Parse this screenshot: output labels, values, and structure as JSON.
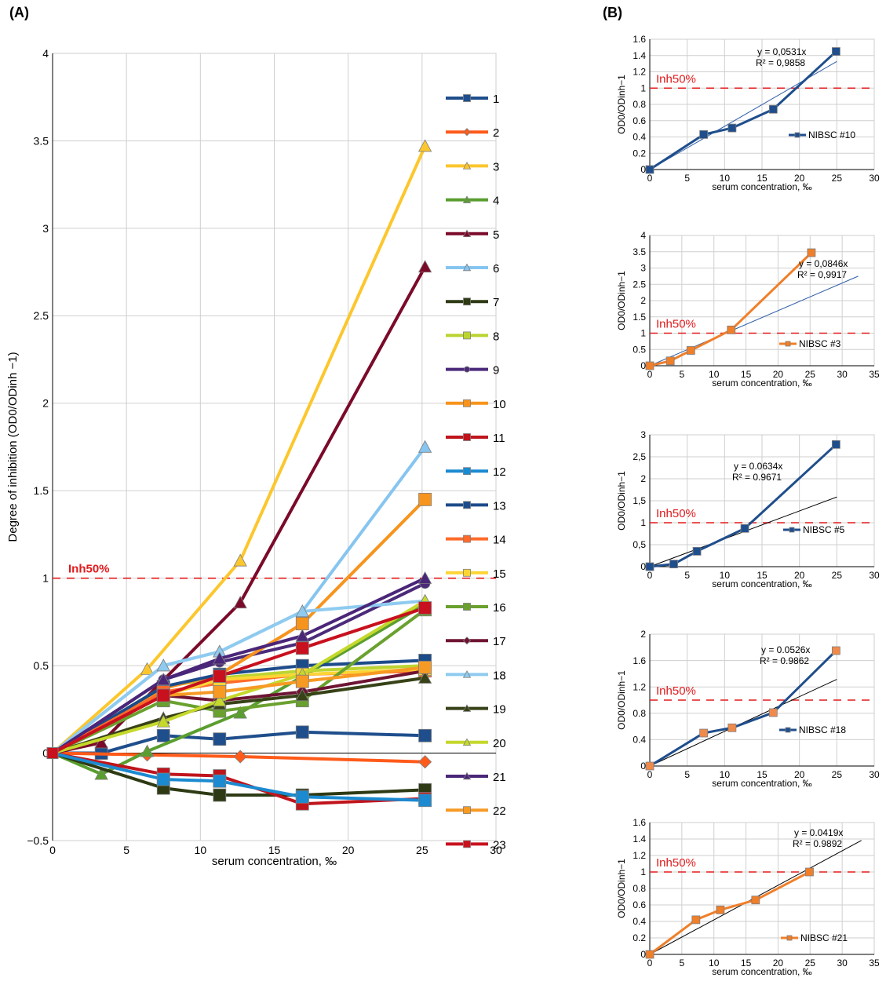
{
  "panels": {
    "A": {
      "label": "(A)"
    },
    "B": {
      "label": "(B)"
    }
  },
  "chart_data": [
    {
      "type": "line",
      "panel": "A",
      "xlabel": "serum concentration, ‰",
      "ylabel": "Degree of inhibition (OD0/ODinh −1)",
      "xlim": [
        0,
        30
      ],
      "ylim": [
        -0.5,
        4
      ],
      "xticks": [
        "0",
        "5",
        "10",
        "15",
        "20",
        "25",
        "30"
      ],
      "yticks": [
        "−0.5",
        "0",
        "0.5",
        "1",
        "1.5",
        "2",
        "2.5",
        "3",
        "3.5",
        "4"
      ],
      "grid": true,
      "legend_position": "right",
      "threshold": {
        "label": "Inh50%",
        "y": 1,
        "color": "#e31a1c"
      },
      "series": [
        {
          "name": "1",
          "color": "#1f4e8c",
          "marker": "square",
          "x": [
            0,
            3.3,
            7.5,
            11.3,
            16.9,
            25.2
          ],
          "y": [
            0,
            0,
            0.1,
            0.08,
            0.12,
            0.1
          ]
        },
        {
          "name": "2",
          "color": "#ff5a1a",
          "marker": "diamond",
          "x": [
            0,
            6.4,
            12.7,
            25.2
          ],
          "y": [
            0,
            -0.01,
            -0.02,
            -0.05
          ]
        },
        {
          "name": "3",
          "color": "#fcc72d",
          "marker": "triangle",
          "x": [
            0,
            6.4,
            12.7,
            25.2
          ],
          "y": [
            0,
            0.48,
            1.1,
            3.47
          ]
        },
        {
          "name": "4",
          "color": "#5a9e2f",
          "marker": "triangle",
          "x": [
            0,
            3.3,
            6.4,
            12.7,
            25.2
          ],
          "y": [
            0,
            -0.12,
            0.01,
            0.23,
            0.85
          ]
        },
        {
          "name": "5",
          "color": "#7b0a2a",
          "marker": "triangle",
          "x": [
            0,
            3.3,
            12.7,
            25.2
          ],
          "y": [
            0,
            0.06,
            0.86,
            2.78
          ]
        },
        {
          "name": "6",
          "color": "#86c5f0",
          "marker": "triangle",
          "x": [
            0,
            7.5,
            11.3,
            16.9,
            25.2
          ],
          "y": [
            0,
            0.5,
            0.58,
            0.81,
            1.75
          ]
        },
        {
          "name": "7",
          "color": "#2d3a14",
          "marker": "square",
          "x": [
            0,
            7.5,
            11.3,
            16.9,
            25.2
          ],
          "y": [
            0,
            -0.2,
            -0.24,
            -0.24,
            -0.21
          ]
        },
        {
          "name": "8",
          "color": "#bcd431",
          "marker": "square",
          "x": [
            0,
            7.5,
            11.3,
            16.9,
            25.2
          ],
          "y": [
            0,
            0.38,
            0.43,
            0.47,
            0.5
          ]
        },
        {
          "name": "9",
          "color": "#4b2a7a",
          "marker": "circle",
          "x": [
            0,
            7.5,
            11.3,
            16.9,
            25.2
          ],
          "y": [
            0,
            0.42,
            0.52,
            0.63,
            0.97
          ]
        },
        {
          "name": "10",
          "color": "#f7941d",
          "marker": "square",
          "x": [
            0,
            7.5,
            11.3,
            16.9,
            25.2
          ],
          "y": [
            0,
            0.37,
            0.45,
            0.74,
            1.45
          ]
        },
        {
          "name": "11",
          "color": "#c0141c",
          "marker": "cross",
          "x": [
            0,
            7.5,
            11.3,
            16.9,
            25.2
          ],
          "y": [
            0,
            -0.12,
            -0.13,
            -0.29,
            -0.26
          ]
        },
        {
          "name": "12",
          "color": "#1b8ad0",
          "marker": "square",
          "x": [
            0,
            7.5,
            11.3,
            16.9,
            25.2
          ],
          "y": [
            0,
            -0.15,
            -0.16,
            -0.25,
            -0.27
          ]
        },
        {
          "name": "13",
          "color": "#1c4b8a",
          "marker": "square",
          "x": [
            0,
            7.5,
            11.3,
            16.9,
            25.2
          ],
          "y": [
            0,
            0.38,
            0.45,
            0.5,
            0.53
          ]
        },
        {
          "name": "14",
          "color": "#ff6a2a",
          "marker": "bar",
          "x": [
            0,
            7.5,
            11.3,
            16.9,
            25.2
          ],
          "y": [
            0,
            0.35,
            0.4,
            0.45,
            0.47
          ]
        },
        {
          "name": "15",
          "color": "#fcd535",
          "marker": "square",
          "x": [
            0,
            7.5,
            11.3,
            16.9,
            25.2
          ],
          "y": [
            0,
            0.33,
            0.42,
            0.45,
            0.48
          ]
        },
        {
          "name": "16",
          "color": "#6aa12e",
          "marker": "square",
          "x": [
            0,
            7.5,
            11.3,
            16.9,
            25.2
          ],
          "y": [
            0,
            0.3,
            0.24,
            0.3,
            0.82
          ]
        },
        {
          "name": "17",
          "color": "#6e1432",
          "marker": "diamond",
          "x": [
            0,
            7.5,
            11.3,
            16.9,
            25.2
          ],
          "y": [
            0,
            0.33,
            0.3,
            0.35,
            0.47
          ]
        },
        {
          "name": "18",
          "color": "#8fcbf0",
          "marker": "triangle",
          "x": [
            0,
            7.5,
            11.3,
            16.9,
            25.2
          ],
          "y": [
            0,
            0.5,
            0.58,
            0.81,
            0.87
          ]
        },
        {
          "name": "19",
          "color": "#374217",
          "marker": "triangle",
          "x": [
            0,
            7.5,
            11.3,
            16.9,
            25.2
          ],
          "y": [
            0,
            0.2,
            0.28,
            0.33,
            0.43
          ]
        },
        {
          "name": "20",
          "color": "#c5d82c",
          "marker": "triangle",
          "x": [
            0,
            7.5,
            11.3,
            16.9,
            25.2
          ],
          "y": [
            0,
            0.18,
            0.3,
            0.45,
            0.87
          ]
        },
        {
          "name": "21",
          "color": "#4a2679",
          "marker": "triangle",
          "x": [
            0,
            7.5,
            11.3,
            16.9,
            25.2
          ],
          "y": [
            0,
            0.42,
            0.54,
            0.67,
            1.0
          ]
        },
        {
          "name": "22",
          "color": "#f79a24",
          "marker": "square",
          "x": [
            0,
            7.5,
            11.3,
            16.9,
            25.2
          ],
          "y": [
            0,
            0.33,
            0.35,
            0.41,
            0.49
          ]
        },
        {
          "name": "23",
          "color": "#c8101e",
          "marker": "square",
          "x": [
            0,
            7.5,
            11.3,
            16.9,
            25.2
          ],
          "y": [
            0,
            0.33,
            0.44,
            0.6,
            0.83
          ]
        }
      ]
    },
    {
      "type": "line",
      "panel": "B1",
      "xlabel": "serum concentration, ‰",
      "ylabel": "OD0/ODinh−1",
      "xlim": [
        0,
        30
      ],
      "ylim": [
        0,
        1.6
      ],
      "xticks": [
        "0",
        "5",
        "10",
        "15",
        "20",
        "25",
        "30"
      ],
      "yticks": [
        "0",
        "0.2",
        "0.4",
        "0.6",
        "0.8",
        "1",
        "1.2",
        "1.4",
        "1.6"
      ],
      "grid": true,
      "legend_position": "right",
      "threshold": {
        "label": "Inh50%",
        "y": 1
      },
      "equation": "y = 0,0531x",
      "r2": "R² = 0,9858",
      "trend": {
        "slope": 0.0531,
        "x_end": 25,
        "color": "#2f5fa8"
      },
      "series": [
        {
          "name": "NIBSC #10",
          "color": "#1f4e8c",
          "x": [
            0,
            7.2,
            11,
            16.5,
            24.9
          ],
          "y": [
            0,
            0.43,
            0.51,
            0.74,
            1.45
          ]
        }
      ]
    },
    {
      "type": "line",
      "panel": "B2",
      "xlabel": "serum concentration, ‰",
      "ylabel": "OD0/ODinh−1",
      "xlim": [
        0,
        35
      ],
      "ylim": [
        0,
        4
      ],
      "xticks": [
        "0",
        "5",
        "10",
        "15",
        "20",
        "25",
        "30",
        "35"
      ],
      "yticks": [
        "0",
        "0.5",
        "1",
        "1.5",
        "2",
        "2.5",
        "3",
        "3.5",
        "4"
      ],
      "grid": true,
      "legend_position": "right",
      "threshold": {
        "label": "Inh50%",
        "y": 1
      },
      "equation": "y = 0,0846x",
      "r2": "R² = 0,9917",
      "trend": {
        "slope": 0.0846,
        "x_end": 32.5,
        "color": "#2f5fa8"
      },
      "series": [
        {
          "name": "NIBSC #3",
          "color": "#f07f2a",
          "x": [
            0,
            3.2,
            6.4,
            12.7,
            25.2
          ],
          "y": [
            0,
            0.15,
            0.47,
            1.1,
            3.47
          ]
        }
      ]
    },
    {
      "type": "line",
      "panel": "B3",
      "xlabel": "serum concentration, ‰",
      "ylabel": "OD0/ODinh−1",
      "xlim": [
        0,
        30
      ],
      "ylim": [
        0,
        3
      ],
      "xticks": [
        "0",
        "5",
        "10",
        "15",
        "20",
        "25",
        "30"
      ],
      "yticks": [
        "0",
        "0,5",
        "1",
        "1,5",
        "2",
        "2,5",
        "3"
      ],
      "grid": true,
      "legend_position": "right",
      "threshold": {
        "label": "Inh50%",
        "y": 1
      },
      "equation": "y = 0.0634x",
      "r2": "R² = 0.9671",
      "trend": {
        "slope": 0.0634,
        "x_end": 25,
        "color": "#000000"
      },
      "series": [
        {
          "name": "NIBSC #5",
          "color": "#1f4e8c",
          "x": [
            0,
            3.2,
            6.3,
            12.7,
            24.9
          ],
          "y": [
            0,
            0.06,
            0.35,
            0.87,
            2.78
          ]
        }
      ]
    },
    {
      "type": "line",
      "panel": "B4",
      "xlabel": "serum concentration, ‰",
      "ylabel": "OD0/ODinh−1",
      "xlim": [
        0,
        30
      ],
      "ylim": [
        0,
        2
      ],
      "xticks": [
        "0",
        "5",
        "10",
        "15",
        "20",
        "25",
        "30"
      ],
      "yticks": [
        "0",
        "0.4",
        "0.8",
        "1.2",
        "1.6",
        "2"
      ],
      "grid": true,
      "legend_position": "right",
      "threshold": {
        "label": "Inh50%",
        "y": 1
      },
      "equation": "y = 0.0526x",
      "r2": "R² = 0.9862",
      "trend": {
        "slope": 0.0526,
        "x_end": 25,
        "color": "#000000"
      },
      "series": [
        {
          "name": "NIBSC #18",
          "color": "#1f4e8c",
          "marker_color": "#f08a4a",
          "x": [
            0,
            7.2,
            11,
            16.5,
            24.9
          ],
          "y": [
            0,
            0.5,
            0.58,
            0.81,
            1.75
          ]
        }
      ]
    },
    {
      "type": "line",
      "panel": "B5",
      "xlabel": "serum concentration, ‰",
      "ylabel": "OD0/ODinh−1",
      "xlim": [
        0,
        35
      ],
      "ylim": [
        0,
        1.6
      ],
      "xticks": [
        "0",
        "5",
        "10",
        "15",
        "20",
        "25",
        "30",
        "35"
      ],
      "yticks": [
        "0",
        "0.2",
        "0.4",
        "0.6",
        "0.8",
        "1",
        "1.2",
        "1.4",
        "1.6"
      ],
      "grid": true,
      "legend_position": "right",
      "threshold": {
        "label": "Inh50%",
        "y": 1
      },
      "equation": "y = 0.0419x",
      "r2": "R² = 0.9892",
      "trend": {
        "slope": 0.0419,
        "x_end": 33,
        "color": "#000000"
      },
      "series": [
        {
          "name": "NIBSC #21",
          "color": "#f07f2a",
          "x": [
            0,
            7.2,
            11,
            16.5,
            24.9
          ],
          "y": [
            0,
            0.42,
            0.54,
            0.66,
            1.0
          ]
        }
      ]
    }
  ]
}
